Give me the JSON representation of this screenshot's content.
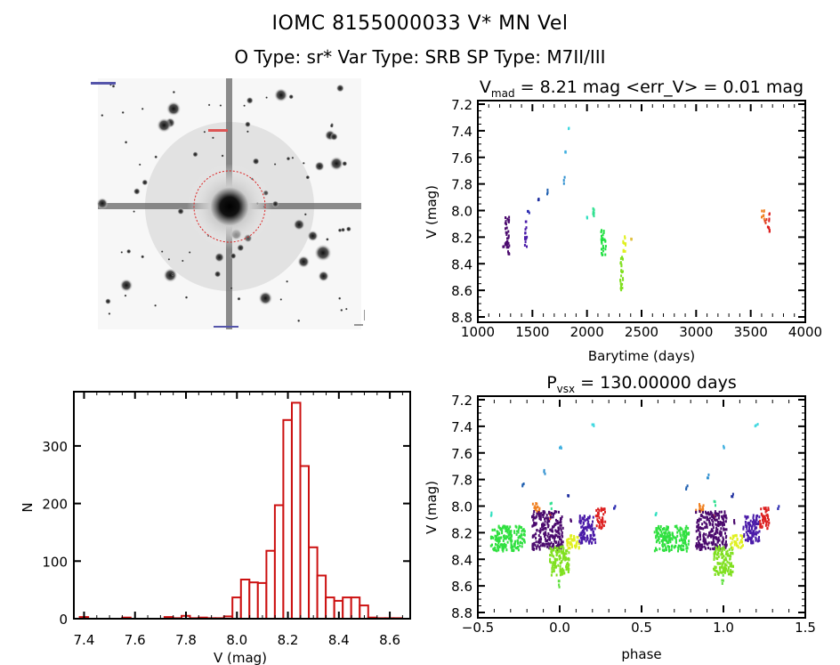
{
  "header": {
    "title": "IOMC 8155000033    V* MN Vel",
    "subtitle": "O Type: sr*   Var Type: SRB   SP Type: M7II/III"
  },
  "finder_image": {
    "description": "Grayscale star field finder chart centered on target with red dashed circle",
    "marker_color": "#dd2222"
  },
  "chart_data": [
    {
      "id": "lightcurve",
      "type": "scatter",
      "title_main": "V",
      "title_sub": "mad",
      "title_rest": " = 8.21 mag <err_V> = 0.01 mag",
      "xlabel": "Barytime (days)",
      "ylabel": "V (mag)",
      "xlim": [
        1000,
        4000
      ],
      "ylim": [
        7.2,
        8.8
      ],
      "y_inverted": true,
      "xticks": [
        "1000",
        "1500",
        "2000",
        "2500",
        "3000",
        "3500",
        "4000"
      ],
      "yticks": [
        "7.2",
        "7.4",
        "7.6",
        "7.8",
        "8.0",
        "8.2",
        "8.4",
        "8.6",
        "8.8"
      ],
      "clusters": [
        {
          "x": [
            1225,
            1235
          ],
          "y": [
            8.25,
            8.3
          ],
          "color": "#4b0a6e"
        },
        {
          "x": [
            1250,
            1290
          ],
          "y": [
            8.04,
            8.33
          ],
          "color": "#4b0a6e"
        },
        {
          "x": [
            1430,
            1450
          ],
          "y": [
            8.07,
            8.3
          ],
          "color": "#4a1aa8"
        },
        {
          "x": [
            1455,
            1460
          ],
          "y": [
            8.0,
            8.02
          ],
          "color": "#2a2ab0"
        },
        {
          "x": [
            1550,
            1560
          ],
          "y": [
            7.91,
            7.93
          ],
          "color": "#2030a0"
        },
        {
          "x": [
            1635,
            1640
          ],
          "y": [
            7.83,
            7.89
          ],
          "color": "#2060b0"
        },
        {
          "x": [
            1785,
            1790
          ],
          "y": [
            7.73,
            7.8
          ],
          "color": "#2f90d0"
        },
        {
          "x": [
            1800,
            1805
          ],
          "y": [
            7.55,
            7.57
          ],
          "color": "#40b0e0"
        },
        {
          "x": [
            1820,
            1830
          ],
          "y": [
            7.38,
            7.4
          ],
          "color": "#40d8e0"
        },
        {
          "x": [
            1995,
            2015
          ],
          "y": [
            8.04,
            8.08
          ],
          "color": "#30e0c0"
        },
        {
          "x": [
            2040,
            2065
          ],
          "y": [
            7.96,
            8.06
          ],
          "color": "#30e090"
        },
        {
          "x": [
            2130,
            2175
          ],
          "y": [
            8.14,
            8.34
          ],
          "color": "#20e040"
        },
        {
          "x": [
            2305,
            2330
          ],
          "y": [
            8.3,
            8.61
          ],
          "color": "#80e020"
        },
        {
          "x": [
            2330,
            2355
          ],
          "y": [
            8.16,
            8.32
          ],
          "color": "#e0f020"
        },
        {
          "x": [
            2395,
            2410
          ],
          "y": [
            8.21,
            8.23
          ],
          "color": "#e0c040"
        },
        {
          "x": [
            3600,
            3625
          ],
          "y": [
            7.98,
            8.07
          ],
          "color": "#f08020"
        },
        {
          "x": [
            3625,
            3645
          ],
          "y": [
            8.05,
            8.1
          ],
          "color": "#e04020"
        },
        {
          "x": [
            3655,
            3675
          ],
          "y": [
            8.01,
            8.17
          ],
          "color": "#dd2020"
        }
      ]
    },
    {
      "id": "histogram",
      "type": "bar",
      "title": "",
      "xlabel": "V (mag)",
      "ylabel": "N",
      "xlim": [
        7.36,
        8.68
      ],
      "ylim": [
        0,
        394
      ],
      "xticks": [
        "7.4",
        "7.6",
        "7.8",
        "8.0",
        "8.2",
        "8.4",
        "8.6"
      ],
      "yticks": [
        "0",
        "100",
        "200",
        "300"
      ],
      "bin_width": 0.0333,
      "bin_start": 7.383,
      "values": [
        3,
        0,
        0,
        0,
        0,
        2,
        0,
        0,
        0,
        0,
        3,
        1,
        5,
        1,
        2,
        1,
        1,
        4,
        37,
        68,
        63,
        62,
        118,
        197,
        345,
        375,
        265,
        124,
        75,
        37,
        31,
        37,
        37,
        23,
        2,
        1,
        1,
        1
      ],
      "color": "#cc1111"
    },
    {
      "id": "phased",
      "type": "scatter",
      "title_main": "P",
      "title_sub": "vsx",
      "title_rest": " = 130.00000 days",
      "xlabel": "phase",
      "ylabel": "V (mag)",
      "xlim": [
        -0.5,
        1.5
      ],
      "ylim": [
        7.2,
        8.8
      ],
      "y_inverted": true,
      "xticks": [
        "−0.5",
        "0.0",
        "0.5",
        "1.0",
        "1.5"
      ],
      "yticks": [
        "7.2",
        "7.4",
        "7.6",
        "7.8",
        "8.0",
        "8.2",
        "8.4",
        "8.6",
        "8.8"
      ],
      "period_days": 130.0,
      "clusters": [
        {
          "x": [
            -0.42,
            -0.41
          ],
          "y": [
            8.04,
            8.08
          ],
          "color": "#30e0c0"
        },
        {
          "x": [
            -0.42,
            -0.21
          ],
          "y": [
            8.15,
            8.34
          ],
          "color": "#30e040"
        },
        {
          "x": [
            -0.23,
            -0.22
          ],
          "y": [
            7.83,
            7.89
          ],
          "color": "#2060b0"
        },
        {
          "x": [
            -0.17,
            -0.12
          ],
          "y": [
            7.98,
            8.05
          ],
          "color": "#f08020"
        },
        {
          "x": [
            -0.1,
            -0.09
          ],
          "y": [
            7.73,
            7.8
          ],
          "color": "#2f90d0"
        },
        {
          "x": [
            -0.06,
            -0.05
          ],
          "y": [
            7.96,
            8.02
          ],
          "color": "#30e090"
        },
        {
          "x": [
            -0.06,
            -0.05
          ],
          "y": [
            8.05,
            8.1
          ],
          "color": "#e04020"
        },
        {
          "x": [
            -0.17,
            0.02
          ],
          "y": [
            8.04,
            8.33
          ],
          "color": "#4b0a6e"
        },
        {
          "x": [
            0.0,
            0.005
          ],
          "y": [
            7.55,
            7.57
          ],
          "color": "#40b0e0"
        },
        {
          "x": [
            -0.06,
            0.06
          ],
          "y": [
            8.3,
            8.52
          ],
          "color": "#80e020"
        },
        {
          "x": [
            -0.01,
            0.0
          ],
          "y": [
            8.52,
            8.61
          ],
          "color": "#60e040"
        },
        {
          "x": [
            0.04,
            0.12
          ],
          "y": [
            8.22,
            8.32
          ],
          "color": "#e0f020"
        },
        {
          "x": [
            0.05,
            0.06
          ],
          "y": [
            7.91,
            7.93
          ],
          "color": "#2030a0"
        },
        {
          "x": [
            0.06,
            0.07
          ],
          "y": [
            8.1,
            8.13
          ],
          "color": "#4b0a6e"
        },
        {
          "x": [
            0.12,
            0.22
          ],
          "y": [
            8.07,
            8.28
          ],
          "color": "#4a1aa8"
        },
        {
          "x": [
            0.19,
            0.21
          ],
          "y": [
            7.38,
            7.4
          ],
          "color": "#40d8e0"
        },
        {
          "x": [
            0.22,
            0.28
          ],
          "y": [
            8.01,
            8.17
          ],
          "color": "#dd2020"
        },
        {
          "x": [
            0.33,
            0.34
          ],
          "y": [
            8.0,
            8.02
          ],
          "color": "#2a2ab0"
        }
      ]
    }
  ]
}
